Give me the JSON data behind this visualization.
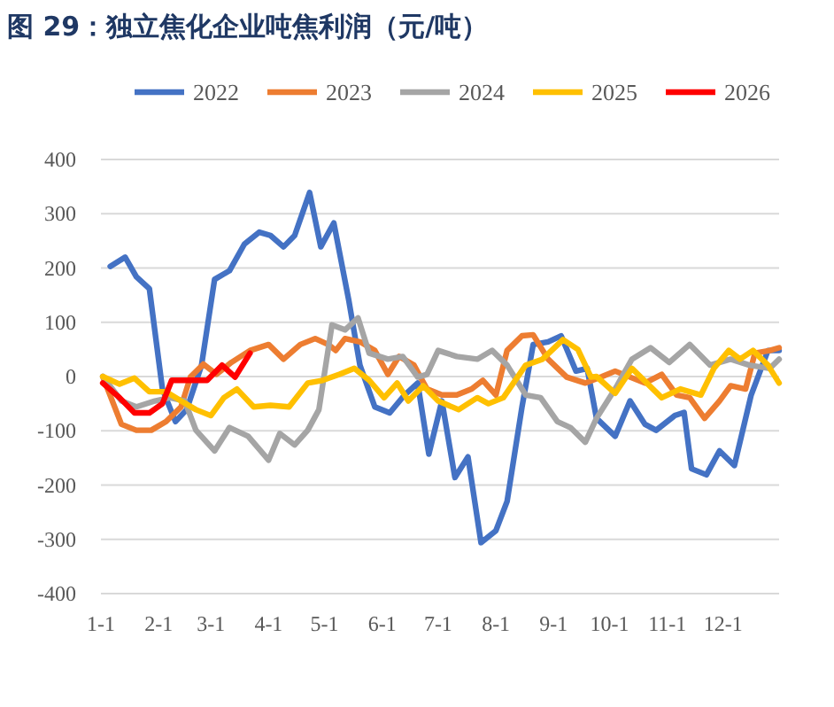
{
  "chart_data": {
    "type": "line",
    "title": "图 29：独立焦化企业吨焦利润（元/吨）",
    "legend": "top",
    "grid": "y",
    "line_style": "solid",
    "marker": "none",
    "xlim": [
      "--01-01",
      "--12-31"
    ],
    "xticks": [
      {
        "value": "--01-01",
        "label": "1-1"
      },
      {
        "value": "--02-01",
        "label": "2-1"
      },
      {
        "value": "--03-01",
        "label": "3-1"
      },
      {
        "value": "--04-01",
        "label": "4-1"
      },
      {
        "value": "--05-01",
        "label": "5-1"
      },
      {
        "value": "--06-01",
        "label": "6-1"
      },
      {
        "value": "--07-01",
        "label": "7-1"
      },
      {
        "value": "--08-01",
        "label": "8-1"
      },
      {
        "value": "--09-01",
        "label": "9-1"
      },
      {
        "value": "--10-01",
        "label": "10-1"
      },
      {
        "value": "--11-01",
        "label": "11-1"
      },
      {
        "value": "--12-01",
        "label": "12-1"
      }
    ],
    "ylim": [
      -400,
      400
    ],
    "yticks": [
      -400,
      -300,
      -200,
      -100,
      0,
      100,
      200,
      300,
      400
    ],
    "series": [
      {
        "name": "2022",
        "color": "#4472c4",
        "x": [
          "--01-06",
          "--01-14",
          "--01-20",
          "--01-27",
          "--02-03",
          "--02-10",
          "--02-16",
          "--02-24",
          "--03-03",
          "--03-11",
          "--03-19",
          "--03-27",
          "--04-02",
          "--04-09",
          "--04-15",
          "--04-23",
          "--04-29",
          "--05-06",
          "--05-14",
          "--05-20",
          "--05-28",
          "--06-05",
          "--06-13",
          "--06-20",
          "--06-26",
          "--07-03",
          "--07-10",
          "--07-17",
          "--07-24",
          "--08-01",
          "--08-07",
          "--08-15",
          "--08-21",
          "--08-29",
          "--09-05",
          "--09-13",
          "--09-19",
          "--09-24",
          "--10-04",
          "--10-12",
          "--10-20",
          "--10-26",
          "--11-05",
          "--11-10",
          "--11-14",
          "--11-22",
          "--11-29",
          "--12-07",
          "--12-16",
          "--12-25",
          "--12-31"
        ],
        "values": [
          203,
          220,
          184,
          162,
          -23,
          -83,
          -61,
          21,
          179,
          195,
          244,
          266,
          260,
          239,
          260,
          339,
          239,
          283,
          141,
          21,
          -56,
          -67,
          -34,
          -12,
          -143,
          -45,
          -186,
          -148,
          -306,
          -284,
          -230,
          -56,
          59,
          64,
          75,
          10,
          15,
          -77,
          -110,
          -45,
          -88,
          -99,
          -72,
          -66,
          -170,
          -181,
          -137,
          -164,
          -34,
          48,
          48
        ]
      },
      {
        "name": "2023",
        "color": "#ed7d31",
        "x": [
          "--01-02",
          "--01-12",
          "--01-20",
          "--01-28",
          "--02-05",
          "--02-13",
          "--02-18",
          "--02-25",
          "--03-04",
          "--03-12",
          "--03-22",
          "--04-01",
          "--04-09",
          "--04-18",
          "--04-26",
          "--05-03",
          "--05-07",
          "--05-12",
          "--05-20",
          "--05-28",
          "--06-04",
          "--06-10",
          "--06-18",
          "--06-25",
          "--07-03",
          "--07-11",
          "--07-19",
          "--07-25",
          "--08-01",
          "--08-07",
          "--08-15",
          "--08-21",
          "--08-29",
          "--09-08",
          "--09-18",
          "--09-27",
          "--10-04",
          "--10-12",
          "--10-20",
          "--10-29",
          "--11-06",
          "--11-13",
          "--11-21",
          "--11-29",
          "--12-05",
          "--12-13",
          "--12-18",
          "--12-26",
          "--12-31"
        ],
        "values": [
          0,
          -88,
          -99,
          -99,
          -83,
          -56,
          -1,
          23,
          4,
          26,
          48,
          59,
          32,
          59,
          70,
          59,
          48,
          70,
          64,
          48,
          4,
          37,
          21,
          -23,
          -34,
          -34,
          -23,
          -7,
          -34,
          48,
          75,
          77,
          32,
          -1,
          -12,
          0,
          10,
          -1,
          -12,
          4,
          -34,
          -39,
          -77,
          -45,
          -17,
          -23,
          43,
          48,
          53
        ]
      },
      {
        "name": "2024",
        "color": "#a5a5a5",
        "x": [
          "--01-02",
          "--01-12",
          "--01-20",
          "--01-30",
          "--02-07",
          "--02-15",
          "--02-21",
          "--03-03",
          "--03-11",
          "--03-21",
          "--04-01",
          "--04-07",
          "--04-15",
          "--04-22",
          "--04-28",
          "--05-05",
          "--05-12",
          "--05-19",
          "--05-25",
          "--06-04",
          "--06-12",
          "--06-20",
          "--06-25",
          "--07-01",
          "--07-11",
          "--07-22",
          "--07-30",
          "--08-07",
          "--08-17",
          "--08-25",
          "--09-03",
          "--09-10",
          "--09-18",
          "--09-24",
          "--10-05",
          "--10-13",
          "--10-23",
          "--11-02",
          "--11-13",
          "--11-24",
          "--12-05",
          "--12-15",
          "--12-26",
          "--12-31"
        ],
        "values": [
          0,
          -45,
          -56,
          -45,
          -39,
          -45,
          -99,
          -137,
          -94,
          -110,
          -154,
          -105,
          -126,
          -99,
          -61,
          95,
          86,
          108,
          43,
          32,
          37,
          -1,
          4,
          48,
          37,
          32,
          48,
          21,
          -34,
          -39,
          -83,
          -94,
          -121,
          -77,
          -17,
          32,
          53,
          26,
          59,
          21,
          32,
          21,
          15,
          32
        ]
      },
      {
        "name": "2025",
        "color": "#ffc000",
        "x": [
          "--01-02",
          "--01-11",
          "--01-19",
          "--01-27",
          "--02-05",
          "--02-13",
          "--02-21",
          "--03-01",
          "--03-08",
          "--03-15",
          "--03-24",
          "--04-02",
          "--04-12",
          "--04-22",
          "--04-30",
          "--05-09",
          "--05-17",
          "--05-25",
          "--06-02",
          "--06-09",
          "--06-15",
          "--06-23",
          "--07-01",
          "--07-12",
          "--07-22",
          "--07-28",
          "--08-05",
          "--08-17",
          "--08-26",
          "--09-06",
          "--09-14",
          "--09-21",
          "--09-24",
          "--10-04",
          "--10-13",
          "--10-21",
          "--10-29",
          "--11-08",
          "--11-19",
          "--11-26",
          "--12-04",
          "--12-10",
          "--12-17",
          "--12-25",
          "--12-31"
        ],
        "values": [
          0,
          -14,
          -3,
          -28,
          -28,
          -45,
          -61,
          -72,
          -39,
          -23,
          -56,
          -53,
          -56,
          -12,
          -7,
          4,
          15,
          -7,
          -39,
          -12,
          -45,
          -17,
          -45,
          -61,
          -39,
          -50,
          -39,
          21,
          32,
          68,
          50,
          -1,
          0,
          -31,
          15,
          -12,
          -39,
          -23,
          -34,
          15,
          48,
          32,
          48,
          21,
          -12
        ]
      },
      {
        "name": "2026",
        "color": "#ff0000",
        "x": [
          "--01-02",
          "--01-11",
          "--01-19",
          "--01-27",
          "--02-03",
          "--02-08",
          "--02-16",
          "--02-27",
          "--03-07",
          "--03-14",
          "--03-22"
        ],
        "values": [
          -12,
          -39,
          -67,
          -67,
          -50,
          -7,
          -7,
          -7,
          21,
          -1,
          43
        ]
      }
    ]
  }
}
